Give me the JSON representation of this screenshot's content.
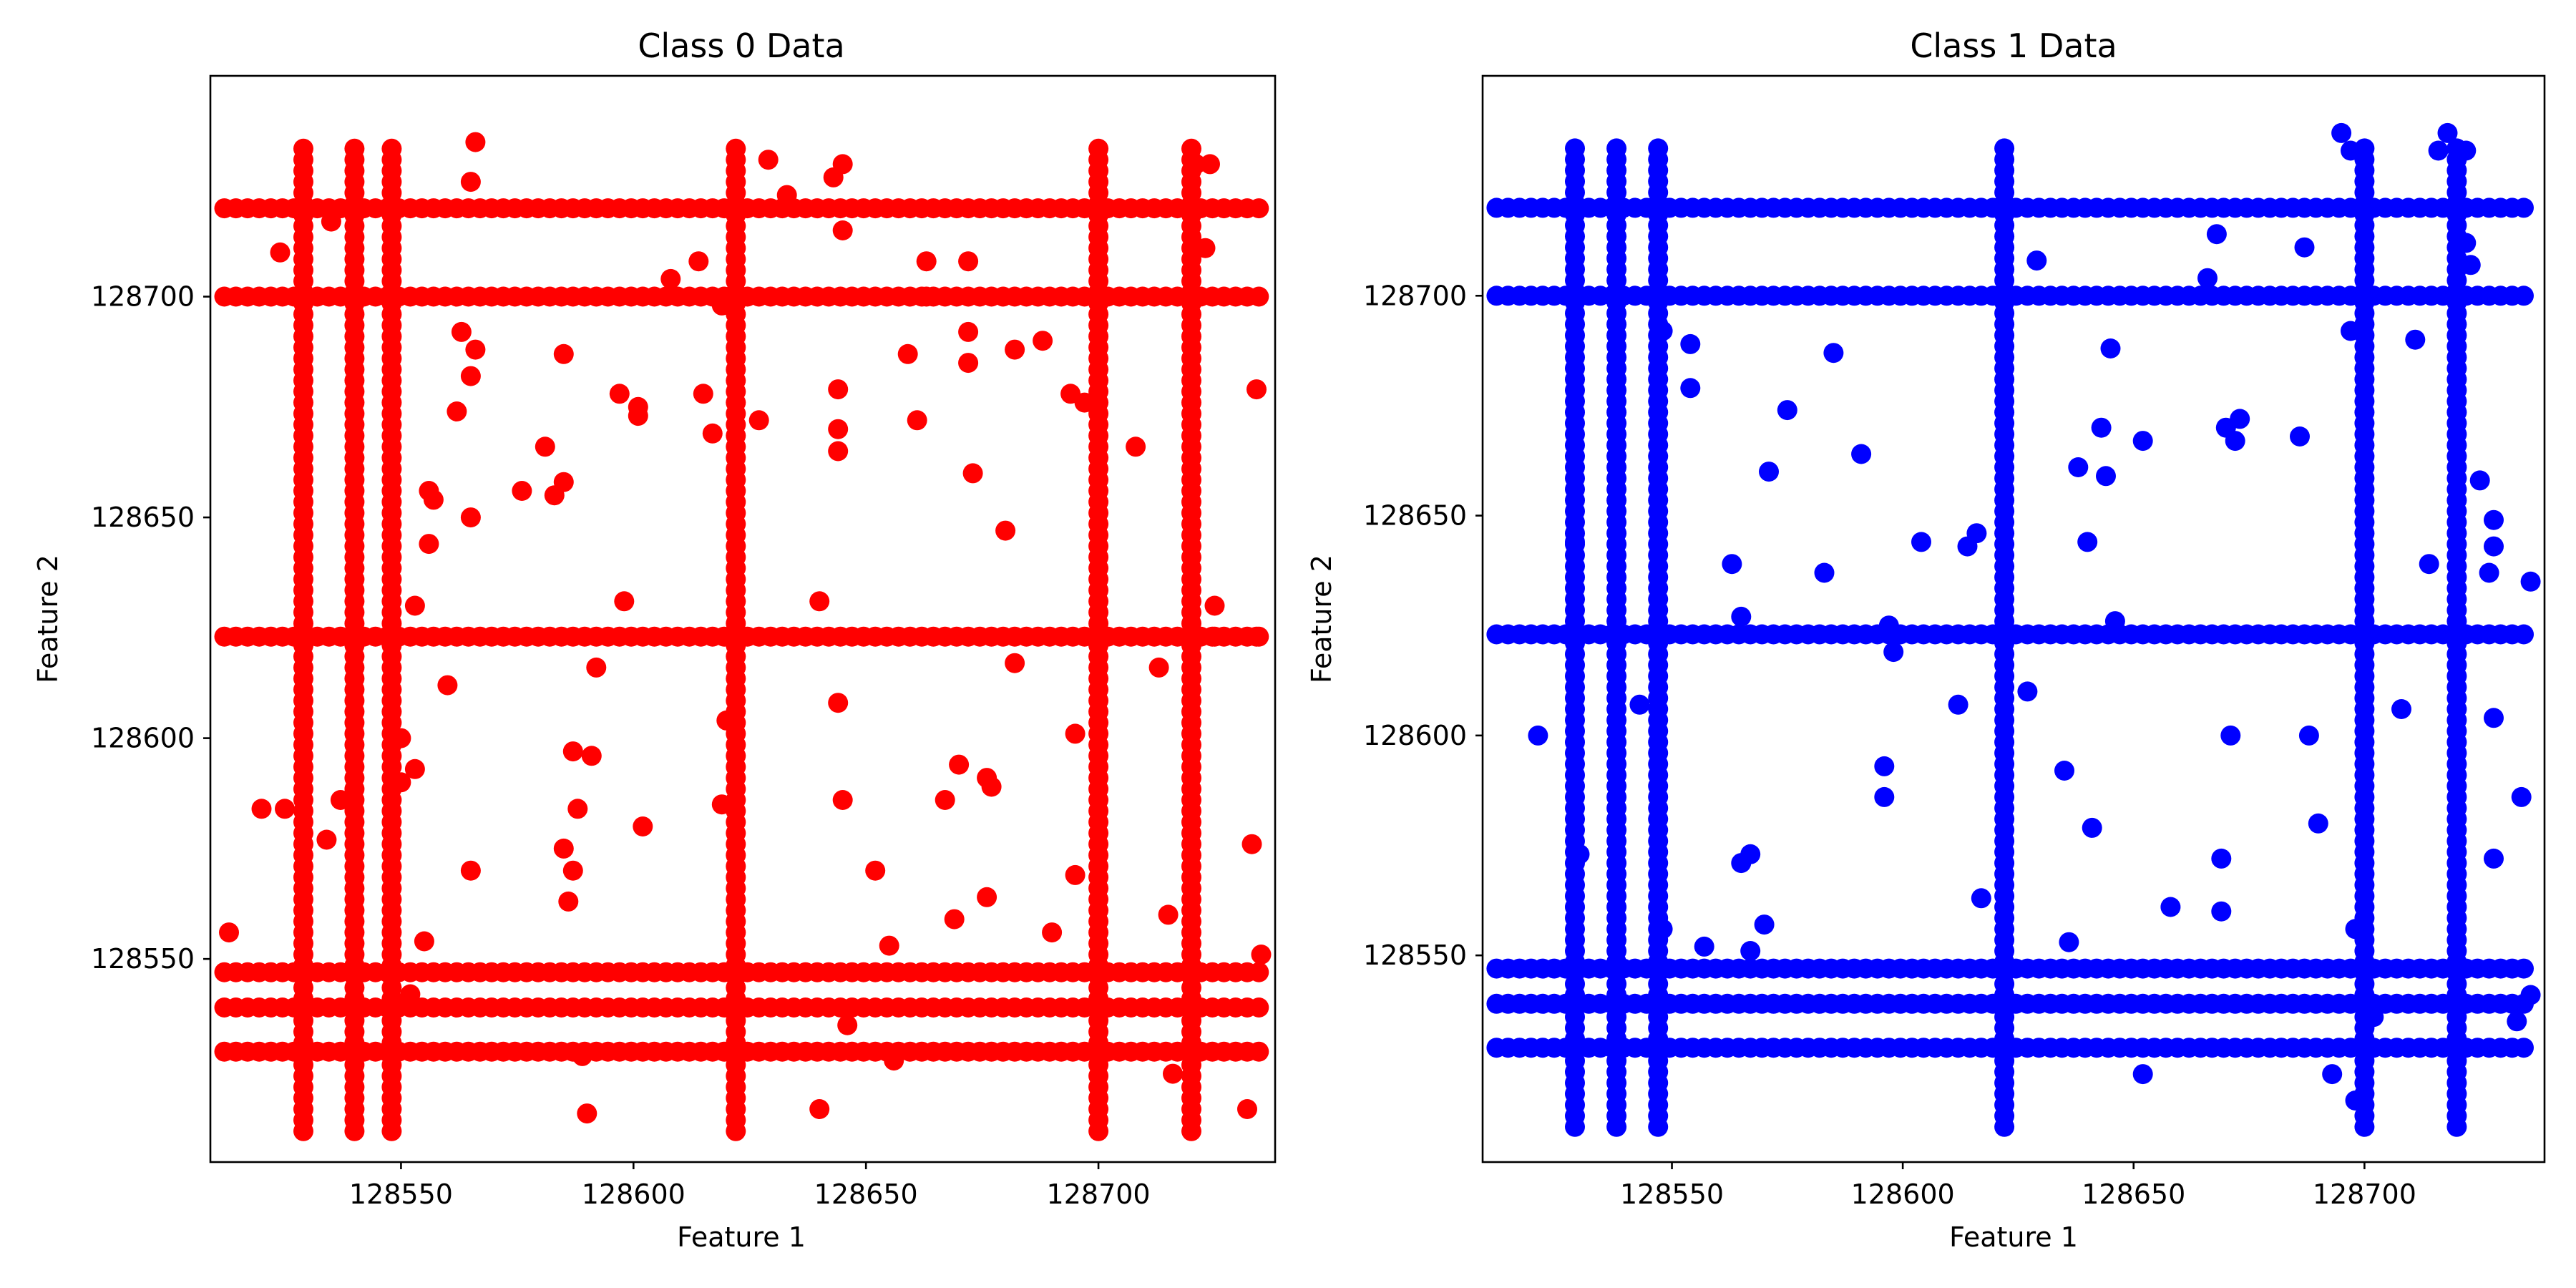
{
  "chart_data": [
    {
      "type": "scatter",
      "title": "Class 0 Data",
      "xlabel": "Feature 1",
      "ylabel": "Feature 2",
      "color": "#ff0000",
      "xlim": [
        128509,
        128738
      ],
      "ylim": [
        128504,
        128750
      ],
      "xticks": [
        128550,
        128600,
        128650,
        128700
      ],
      "yticks": [
        128550,
        128600,
        128650,
        128700
      ],
      "grid": false,
      "grid_lines": {
        "vertical": [
          128529,
          128540,
          128548,
          128622,
          128700,
          128720
        ],
        "horizontal": [
          128529,
          128539,
          128547,
          128623,
          128700,
          128720
        ],
        "x_extent": [
          128512,
          128735
        ],
        "y_extent": [
          128511,
          128735
        ]
      },
      "points": [
        [
          128513,
          128556
        ],
        [
          128520,
          128584
        ],
        [
          128525,
          128584
        ],
        [
          128524,
          128710
        ],
        [
          128534,
          128577
        ],
        [
          128535,
          128717
        ],
        [
          128537,
          128586
        ],
        [
          128555,
          128554
        ],
        [
          128552,
          128542
        ],
        [
          128556,
          128656
        ],
        [
          128556,
          128644
        ],
        [
          128557,
          128654
        ],
        [
          128560,
          128612
        ],
        [
          128562,
          128674
        ],
        [
          128563,
          128692
        ],
        [
          128565,
          128650
        ],
        [
          128565,
          128682
        ],
        [
          128566,
          128688
        ],
        [
          128566,
          128735
        ],
        [
          128565,
          128726
        ],
        [
          128565,
          128570
        ],
        [
          128553,
          128630
        ],
        [
          128553,
          128593
        ],
        [
          128550,
          128590
        ],
        [
          128550,
          128600
        ],
        [
          128576,
          128656
        ],
        [
          128581,
          128666
        ],
        [
          128583,
          128655
        ],
        [
          128585,
          128658
        ],
        [
          128585,
          128687
        ],
        [
          128585,
          128575
        ],
        [
          128586,
          128563
        ],
        [
          128587,
          128570
        ],
        [
          128587,
          128597
        ],
        [
          128588,
          128584
        ],
        [
          128591,
          128596
        ],
        [
          128592,
          128616
        ],
        [
          128590,
          128515
        ],
        [
          128597,
          128678
        ],
        [
          128598,
          128631
        ],
        [
          128601,
          128675
        ],
        [
          128601,
          128673
        ],
        [
          128602,
          128580
        ],
        [
          128608,
          128704
        ],
        [
          128614,
          128708
        ],
        [
          128617,
          128669
        ],
        [
          128619,
          128698
        ],
        [
          128615,
          128678
        ],
        [
          128620,
          128604
        ],
        [
          128619,
          128585
        ],
        [
          128627,
          128672
        ],
        [
          128629,
          128731
        ],
        [
          128633,
          128723
        ],
        [
          128640,
          128631
        ],
        [
          128643,
          128727
        ],
        [
          128645,
          128730
        ],
        [
          128645,
          128715
        ],
        [
          128644,
          128679
        ],
        [
          128644,
          128670
        ],
        [
          128644,
          128665
        ],
        [
          128644,
          128608
        ],
        [
          128645,
          128586
        ],
        [
          128646,
          128535
        ],
        [
          128652,
          128570
        ],
        [
          128655,
          128553
        ],
        [
          128656,
          128527
        ],
        [
          128659,
          128687
        ],
        [
          128661,
          128672
        ],
        [
          128663,
          128708
        ],
        [
          128663,
          128700
        ],
        [
          128667,
          128586
        ],
        [
          128669,
          128559
        ],
        [
          128670,
          128594
        ],
        [
          128672,
          128708
        ],
        [
          128672,
          128692
        ],
        [
          128672,
          128685
        ],
        [
          128673,
          128660
        ],
        [
          128676,
          128564
        ],
        [
          128676,
          128591
        ],
        [
          128677,
          128589
        ],
        [
          128680,
          128647
        ],
        [
          128682,
          128688
        ],
        [
          128682,
          128617
        ],
        [
          128688,
          128690
        ],
        [
          128690,
          128556
        ],
        [
          128694,
          128678
        ],
        [
          128695,
          128569
        ],
        [
          128695,
          128601
        ],
        [
          128697,
          128676
        ],
        [
          128708,
          128666
        ],
        [
          128713,
          128616
        ],
        [
          128715,
          128560
        ],
        [
          128716,
          128524
        ],
        [
          128721,
          128730
        ],
        [
          128724,
          128730
        ],
        [
          128723,
          128711
        ],
        [
          128725,
          128623
        ],
        [
          128725,
          128630
        ],
        [
          128732,
          128516
        ],
        [
          128733,
          128576
        ],
        [
          128735,
          128551
        ],
        [
          128734,
          128679
        ],
        [
          128734,
          128623
        ],
        [
          128640,
          128516
        ],
        [
          128589,
          128528
        ]
      ]
    },
    {
      "type": "scatter",
      "title": "Class 1 Data",
      "xlabel": "Feature 1",
      "ylabel": "Feature 2",
      "color": "#0000ff",
      "xlim": [
        128509,
        128739
      ],
      "ylim": [
        128503,
        128750
      ],
      "xticks": [
        128550,
        128600,
        128650,
        128700
      ],
      "yticks": [
        128550,
        128600,
        128650,
        128700
      ],
      "grid": false,
      "grid_lines": {
        "vertical": [
          128529,
          128538,
          128547,
          128622,
          128700,
          128720
        ],
        "horizontal": [
          128529,
          128539,
          128547,
          128623,
          128700,
          128720
        ],
        "x_extent": [
          128512,
          128736
        ],
        "y_extent": [
          128511,
          128735
        ]
      },
      "points": [
        [
          128521,
          128600
        ],
        [
          128530,
          128573
        ],
        [
          128529,
          128644
        ],
        [
          128543,
          128607
        ],
        [
          128548,
          128556
        ],
        [
          128548,
          128692
        ],
        [
          128554,
          128689
        ],
        [
          128554,
          128679
        ],
        [
          128557,
          128552
        ],
        [
          128563,
          128639
        ],
        [
          128565,
          128627
        ],
        [
          128565,
          128571
        ],
        [
          128567,
          128573
        ],
        [
          128567,
          128551
        ],
        [
          128571,
          128660
        ],
        [
          128570,
          128557
        ],
        [
          128575,
          128674
        ],
        [
          128583,
          128637
        ],
        [
          128585,
          128687
        ],
        [
          128591,
          128664
        ],
        [
          128596,
          128593
        ],
        [
          128596,
          128586
        ],
        [
          128598,
          128619
        ],
        [
          128597,
          128625
        ],
        [
          128604,
          128644
        ],
        [
          128612,
          128607
        ],
        [
          128614,
          128643
        ],
        [
          128616,
          128646
        ],
        [
          128617,
          128563
        ],
        [
          128629,
          128708
        ],
        [
          128627,
          128610
        ],
        [
          128635,
          128592
        ],
        [
          128636,
          128553
        ],
        [
          128638,
          128661
        ],
        [
          128640,
          128644
        ],
        [
          128641,
          128579
        ],
        [
          128643,
          128670
        ],
        [
          128644,
          128659
        ],
        [
          128645,
          128688
        ],
        [
          128646,
          128626
        ],
        [
          128652,
          128667
        ],
        [
          128652,
          128523
        ],
        [
          128658,
          128561
        ],
        [
          128666,
          128704
        ],
        [
          128668,
          128714
        ],
        [
          128669,
          128572
        ],
        [
          128669,
          128560
        ],
        [
          128670,
          128670
        ],
        [
          128672,
          128667
        ],
        [
          128673,
          128672
        ],
        [
          128671,
          128600
        ],
        [
          128686,
          128668
        ],
        [
          128687,
          128711
        ],
        [
          128688,
          128600
        ],
        [
          128690,
          128580
        ],
        [
          128693,
          128523
        ],
        [
          128695,
          128737
        ],
        [
          128697,
          128733
        ],
        [
          128697,
          128692
        ],
        [
          128698,
          128517
        ],
        [
          128698,
          128556
        ],
        [
          128702,
          128536
        ],
        [
          128708,
          128606
        ],
        [
          128711,
          128690
        ],
        [
          128714,
          128639
        ],
        [
          128716,
          128733
        ],
        [
          128718,
          128737
        ],
        [
          128722,
          128733
        ],
        [
          128722,
          128712
        ],
        [
          128723,
          128707
        ],
        [
          128725,
          128658
        ],
        [
          128727,
          128637
        ],
        [
          128728,
          128649
        ],
        [
          128728,
          128643
        ],
        [
          128728,
          128604
        ],
        [
          128728,
          128572
        ],
        [
          128734,
          128586
        ],
        [
          128736,
          128635
        ],
        [
          128736,
          128541
        ],
        [
          128733,
          128535
        ]
      ]
    }
  ]
}
